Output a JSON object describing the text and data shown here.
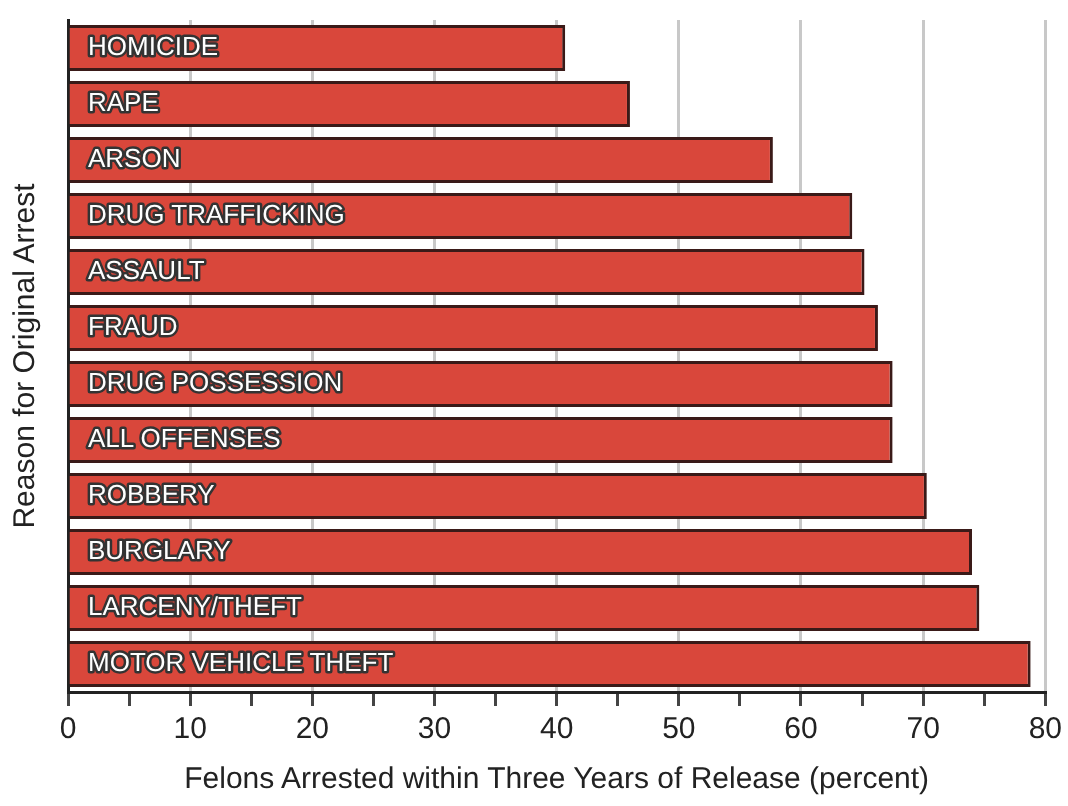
{
  "chart_data": {
    "type": "bar",
    "orientation": "horizontal",
    "xlabel": "Felons Arrested within Three Years of Release (percent)",
    "ylabel": "Reason for Original Arrest",
    "categories": [
      "HOMICIDE",
      "RAPE",
      "ARSON",
      "DRUG TRAFFICKING",
      "ASSAULT",
      "FRAUD",
      "DRUG POSSESSION",
      "ALL OFFENSES",
      "ROBBERY",
      "BURGLARY",
      "LARCENY/THEFT",
      "MOTOR VEHICLE THEFT"
    ],
    "values": [
      40.7,
      46.0,
      57.7,
      64.2,
      65.2,
      66.3,
      67.5,
      67.5,
      70.3,
      74.0,
      74.6,
      78.8
    ],
    "color": "#d9473b",
    "xlim": [
      0,
      80
    ],
    "xticks": [
      0,
      {
        "value": 5,
        "label": null
      },
      10,
      {
        "value": 15,
        "label": null
      },
      20,
      {
        "value": 25,
        "label": null
      },
      30,
      {
        "value": 35,
        "label": null
      },
      40,
      {
        "value": 45,
        "label": null
      },
      50,
      {
        "value": 55,
        "label": null
      },
      60,
      {
        "value": 65,
        "label": null
      },
      70,
      {
        "value": 75,
        "label": null
      },
      80
    ],
    "grid": "x"
  }
}
